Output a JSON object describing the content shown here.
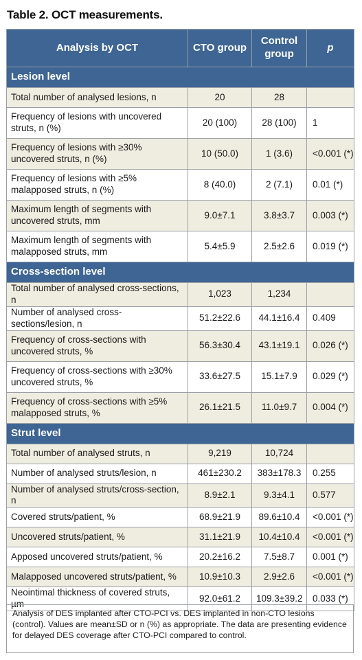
{
  "title": "Table 2. OCT measurements.",
  "header": {
    "col1": "Analysis by OCT",
    "col2": "CTO group",
    "col3": "Control group",
    "col4": "p"
  },
  "sections": [
    {
      "label": "Lesion level",
      "rows": [
        [
          "Total number of analysed lesions, n",
          "20",
          "28",
          ""
        ],
        [
          "Frequency of lesions with uncovered struts, n (%)",
          "20 (100)",
          "28 (100)",
          "1"
        ],
        [
          "Frequency of lesions with ≥30% uncovered struts, n (%)",
          "10 (50.0)",
          "1 (3.6)",
          "<0.001 (*)"
        ],
        [
          "Frequency of lesions with ≥5% malapposed struts, n (%)",
          "8 (40.0)",
          "2 (7.1)",
          "0.01 (*)"
        ],
        [
          "Maximum length of segments with uncovered struts, mm",
          "9.0±7.1",
          "3.8±3.7",
          "0.003 (*)"
        ],
        [
          "Maximum length of segments with malapposed struts, mm",
          "5.4±5.9",
          "2.5±2.6",
          "0.019 (*)"
        ]
      ]
    },
    {
      "label": "Cross-section level",
      "rows": [
        [
          "Total number of analysed cross-sections, n",
          "1,023",
          "1,234",
          ""
        ],
        [
          "Number of analysed cross-sections/lesion, n",
          "51.2±22.6",
          "44.1±16.4",
          "0.409"
        ],
        [
          "Frequency of cross-sections with uncovered struts, %",
          "56.3±30.4",
          "43.1±19.1",
          "0.026 (*)"
        ],
        [
          "Frequency of cross-sections with ≥30% uncovered struts, %",
          "33.6±27.5",
          "15.1±7.9",
          "0.029 (*)"
        ],
        [
          "Frequency of cross-sections with ≥5% malapposed struts, %",
          "26.1±21.5",
          "11.0±9.7",
          "0.004 (*)"
        ]
      ]
    },
    {
      "label": "Strut level",
      "rows": [
        [
          "Total number of analysed struts, n",
          "9,219",
          "10,724",
          ""
        ],
        [
          "Number of analysed struts/lesion, n",
          "461±230.2",
          "383±178.3",
          "0.255"
        ],
        [
          "Number of analysed struts/cross-section, n",
          "8.9±2.1",
          "9.3±4.1",
          "0.577"
        ],
        [
          "Covered struts/patient, %",
          "68.9±21.9",
          "89.6±10.4",
          "<0.001 (*)"
        ],
        [
          "Uncovered struts/patient, %",
          "31.1±21.9",
          "10.4±10.4",
          "<0.001 (*)"
        ],
        [
          "Apposed uncovered struts/patient, %",
          "20.2±16.2",
          "7.5±8.7",
          "0.001 (*)"
        ],
        [
          "Malapposed uncovered struts/patient, %",
          "10.9±10.3",
          "2.9±2.6",
          "<0.001 (*)"
        ],
        [
          "Neointimal thickness of covered struts, µm",
          "92.0±61.2",
          "109.3±39.2",
          "0.033 (*)"
        ]
      ]
    }
  ],
  "footnote": "Analysis of DES implanted after CTO-PCI vs. DES implanted in non-CTO lesions (control). Values are mean±SD or n (%) as appropriate. The data are presenting evidence for delayed DES coverage after CTO-PCI compared to control.",
  "colors": {
    "header_bg": "#3e6593",
    "shade_bg": "#efece0",
    "border": "#9aa0a6"
  }
}
